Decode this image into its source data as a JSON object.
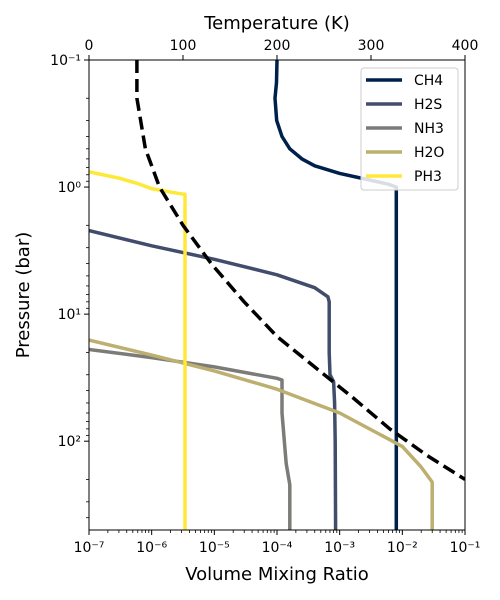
{
  "chart_data": {
    "type": "line",
    "xlabel": "Volume Mixing Ratio",
    "ylabel": "Pressure (bar)",
    "top_xlabel": "Temperature (K)",
    "x_scale": "log",
    "y_scale": "log",
    "y_inverted": true,
    "xlim": [
      1e-07,
      0.1
    ],
    "ylim": [
      0.1,
      500
    ],
    "top_xlim": [
      0,
      400
    ],
    "x_ticks": [
      {
        "value": 1e-07,
        "label": "10⁻⁷"
      },
      {
        "value": 1e-06,
        "label": "10⁻⁶"
      },
      {
        "value": 1e-05,
        "label": "10⁻⁵"
      },
      {
        "value": 0.0001,
        "label": "10⁻⁴"
      },
      {
        "value": 0.001,
        "label": "10⁻³"
      },
      {
        "value": 0.01,
        "label": "10⁻²"
      },
      {
        "value": 0.1,
        "label": "10⁻¹"
      }
    ],
    "y_ticks": [
      {
        "value": 0.1,
        "label": "10⁻¹"
      },
      {
        "value": 1,
        "label": "10⁰"
      },
      {
        "value": 10,
        "label": "10¹"
      },
      {
        "value": 100,
        "label": "10²"
      }
    ],
    "top_ticks": [
      {
        "value": 0,
        "label": "0"
      },
      {
        "value": 100,
        "label": "100"
      },
      {
        "value": 200,
        "label": "200"
      },
      {
        "value": 300,
        "label": "300"
      },
      {
        "value": 400,
        "label": "400"
      }
    ],
    "legend_position": "top-right",
    "series": [
      {
        "name": "CH4",
        "color": "#00204c",
        "points": [
          [
            0.0001,
            0.1
          ],
          [
            9.8e-05,
            0.15
          ],
          [
            9.3e-05,
            0.2
          ],
          [
            9.9e-05,
            0.3
          ],
          [
            0.00012,
            0.4
          ],
          [
            0.00016,
            0.5
          ],
          [
            0.00025,
            0.6
          ],
          [
            0.0004,
            0.68
          ],
          [
            0.001,
            0.78
          ],
          [
            0.003,
            0.88
          ],
          [
            0.006,
            0.95
          ],
          [
            0.008,
            1.0
          ],
          [
            0.008,
            10
          ],
          [
            0.008,
            100
          ],
          [
            0.008,
            500
          ]
        ]
      },
      {
        "name": "H2S",
        "color": "#414d6b",
        "points": [
          [
            1e-07,
            2.2
          ],
          [
            1e-06,
            2.9
          ],
          [
            1e-05,
            3.7
          ],
          [
            0.0001,
            4.9
          ],
          [
            0.0004,
            6.2
          ],
          [
            0.00065,
            7.3
          ],
          [
            0.00068,
            8
          ],
          [
            0.00068,
            20
          ],
          [
            0.0007,
            30
          ],
          [
            0.0008,
            34
          ],
          [
            0.00083,
            50
          ],
          [
            0.00085,
            100
          ],
          [
            0.00086,
            500
          ]
        ]
      },
      {
        "name": "NH3",
        "color": "#7c7b78",
        "points": [
          [
            1e-07,
            19
          ],
          [
            1e-06,
            22
          ],
          [
            1e-05,
            26
          ],
          [
            0.0001,
            32
          ],
          [
            0.00012,
            33
          ],
          [
            0.00012,
            60
          ],
          [
            0.00014,
            150
          ],
          [
            0.00016,
            220
          ],
          [
            0.00016,
            500
          ]
        ]
      },
      {
        "name": "H2O",
        "color": "#bcaf6f",
        "points": [
          [
            1e-07,
            16
          ],
          [
            1e-06,
            21
          ],
          [
            1e-05,
            28
          ],
          [
            0.0001,
            39
          ],
          [
            0.001,
            60
          ],
          [
            0.01,
            110
          ],
          [
            0.02,
            160
          ],
          [
            0.03,
            210
          ],
          [
            0.03,
            500
          ]
        ]
      },
      {
        "name": "PH3",
        "color": "#fee838",
        "points": [
          [
            1e-07,
            0.76
          ],
          [
            3e-07,
            0.85
          ],
          [
            6e-07,
            0.94
          ],
          [
            1e-06,
            1.03
          ],
          [
            2.6e-06,
            1.12
          ],
          [
            3.4e-06,
            1.14
          ],
          [
            3.4e-06,
            1.2
          ],
          [
            3.4e-06,
            500
          ]
        ]
      }
    ],
    "temperature_profile": {
      "name": "",
      "color": "#000000",
      "dashed": true,
      "points": [
        [
          51,
          0.1
        ],
        [
          51,
          0.2
        ],
        [
          60,
          0.5
        ],
        [
          75,
          1
        ],
        [
          100,
          2
        ],
        [
          130,
          4
        ],
        [
          165,
          8
        ],
        [
          200,
          15
        ],
        [
          240,
          26
        ],
        [
          280,
          45
        ],
        [
          320,
          80
        ],
        [
          360,
          130
        ],
        [
          400,
          200
        ]
      ]
    }
  }
}
